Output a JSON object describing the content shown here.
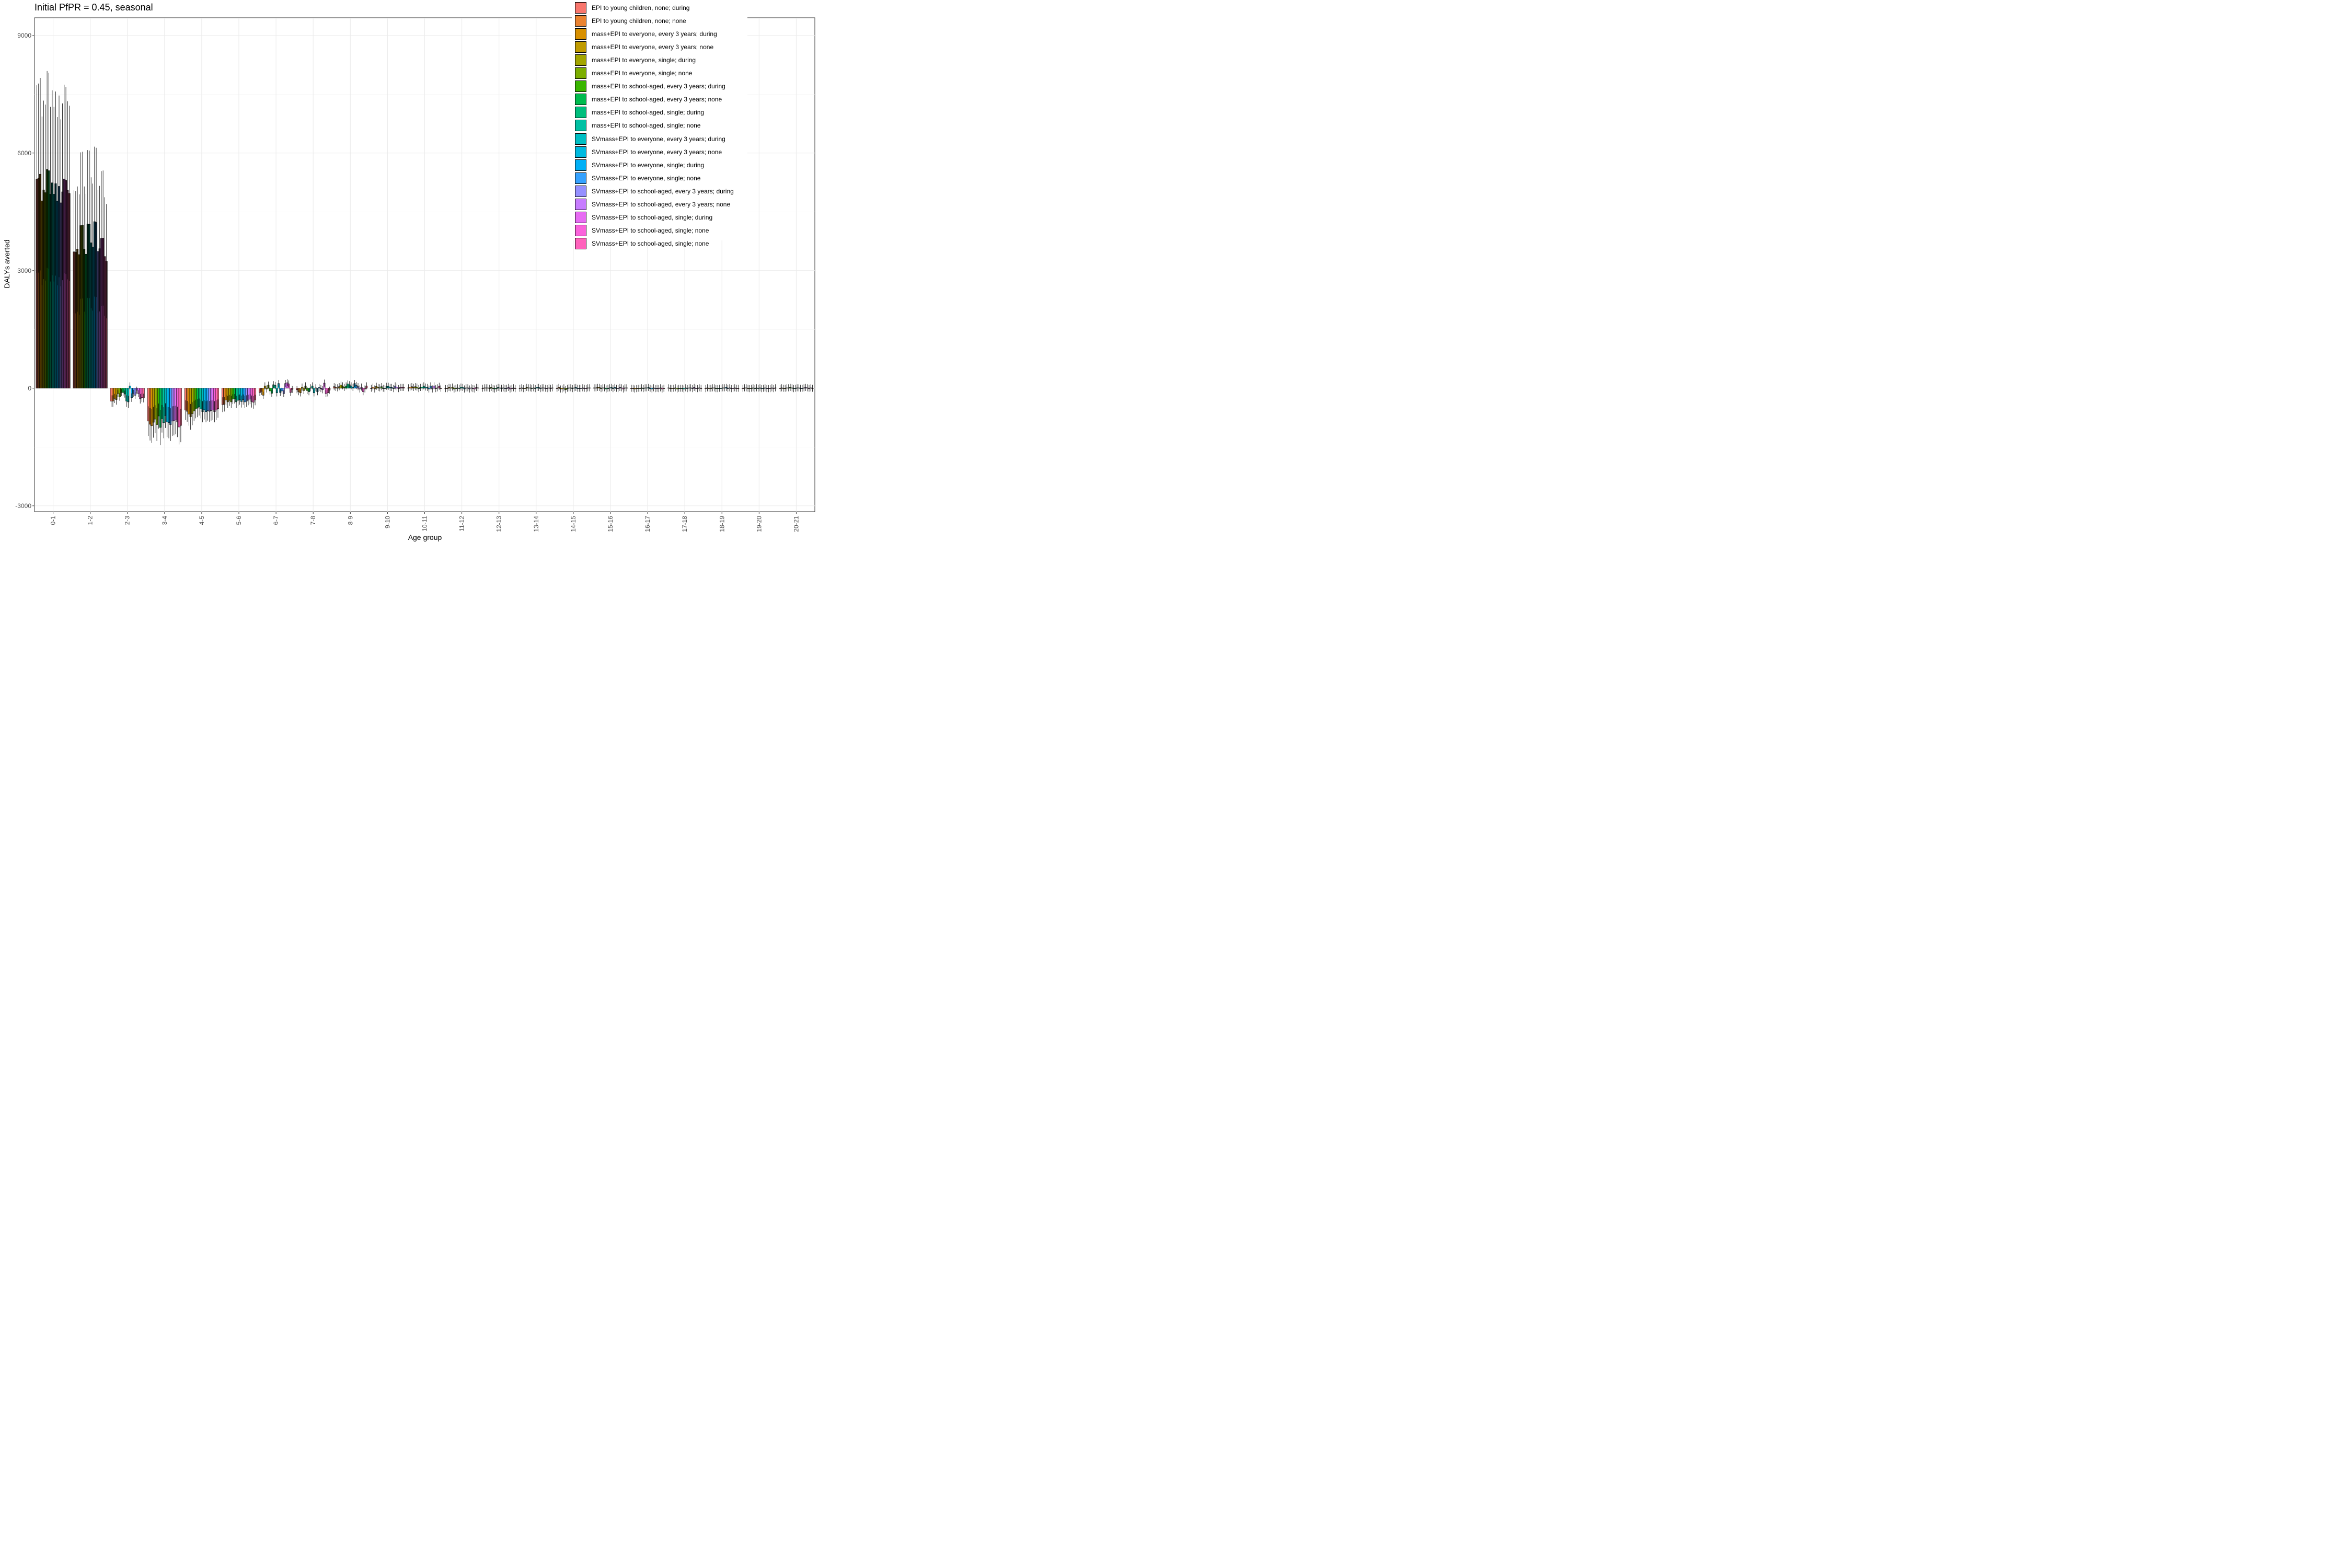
{
  "chart_data": {
    "type": "bar",
    "title": "Initial PfPR = 0.45, seasonal",
    "xlabel": "Age group",
    "ylabel": "DALYs averted",
    "ylim": [
      -3150,
      9450
    ],
    "yticks": [
      -3000,
      0,
      3000,
      6000,
      9000
    ],
    "grid": true,
    "legend_position": "top-right",
    "error_bars": true,
    "categories": [
      "0-1",
      "1-2",
      "2-3",
      "3-4",
      "4-5",
      "5-6",
      "6-7",
      "7-8",
      "8-9",
      "9-10",
      "10-11",
      "11-12",
      "12-13",
      "13-14",
      "14-15",
      "15-16",
      "16-17",
      "17-18",
      "18-19",
      "19-20",
      "20-21"
    ],
    "series": [
      {
        "name": "EPI to young children, none; during",
        "color": "#F8766D",
        "values": [
          5330,
          3480,
          -330,
          -840,
          -560,
          -420,
          -110,
          -40,
          40,
          0,
          10,
          -10,
          0,
          0,
          0,
          10,
          0,
          10,
          -10,
          0,
          0
        ]
      },
      {
        "name": "EPI to young children, none; none",
        "color": "#EA8331",
        "values": [
          5360,
          3470,
          -330,
          -920,
          -590,
          -410,
          -80,
          -90,
          20,
          30,
          30,
          -10,
          10,
          10,
          20,
          10,
          0,
          0,
          10,
          10,
          10
        ]
      },
      {
        "name": "mass+EPI to everyone, every 3 years; during",
        "color": "#D89000",
        "values": [
          5460,
          3550,
          -260,
          -960,
          -660,
          -300,
          -180,
          -120,
          10,
          -20,
          40,
          20,
          10,
          -10,
          -20,
          20,
          -20,
          -10,
          0,
          10,
          0
        ]
      },
      {
        "name": "mass+EPI to everyone, every 3 years; none",
        "color": "#C09B00",
        "values": [
          4780,
          3410,
          -290,
          -870,
          -730,
          -350,
          60,
          30,
          40,
          50,
          20,
          10,
          10,
          -10,
          -20,
          20,
          -10,
          0,
          0,
          0,
          0
        ]
      },
      {
        "name": "mass+EPI to everyone, single; during",
        "color": "#A3A500",
        "values": [
          5060,
          4150,
          -140,
          -790,
          -650,
          -310,
          -20,
          -60,
          80,
          20,
          40,
          30,
          0,
          20,
          10,
          -10,
          0,
          10,
          10,
          -10,
          10
        ]
      },
      {
        "name": "mass+EPI to everyone, single; none",
        "color": "#7CAE00",
        "values": [
          4990,
          4160,
          -220,
          -930,
          -580,
          -350,
          80,
          60,
          60,
          10,
          30,
          -20,
          20,
          10,
          -40,
          10,
          0,
          -20,
          10,
          0,
          10
        ]
      },
      {
        "name": "mass+EPI to school-aged, every 3 years; during",
        "color": "#39B600",
        "values": [
          5580,
          3550,
          -110,
          -710,
          -530,
          -280,
          -70,
          -60,
          20,
          40,
          -10,
          0,
          -10,
          10,
          0,
          10,
          10,
          0,
          -10,
          10,
          20
        ]
      },
      {
        "name": "mass+EPI to school-aged, every 3 years; none",
        "color": "#00BB4E",
        "values": [
          5550,
          3420,
          -110,
          -1000,
          -510,
          -270,
          -130,
          -90,
          60,
          0,
          20,
          10,
          -20,
          0,
          10,
          -20,
          -10,
          0,
          -10,
          -10,
          10
        ]
      },
      {
        "name": "mass+EPI to school-aged, single; during",
        "color": "#00BF7D",
        "values": [
          4950,
          4190,
          -150,
          -780,
          -480,
          -350,
          90,
          10,
          110,
          -10,
          30,
          0,
          0,
          10,
          10,
          0,
          10,
          0,
          0,
          10,
          -10
        ]
      },
      {
        "name": "mass+EPI to school-aged, single; none",
        "color": "#00C1A3",
        "values": [
          5240,
          4180,
          -330,
          -880,
          -530,
          -310,
          70,
          60,
          90,
          50,
          60,
          30,
          20,
          -10,
          -10,
          10,
          10,
          -20,
          0,
          0,
          0
        ]
      },
      {
        "name": "SVmass+EPI to everyone, every 3 years; during",
        "color": "#00BFC4",
        "values": [
          4950,
          3710,
          -350,
          -700,
          -600,
          -290,
          -120,
          -120,
          60,
          50,
          30,
          20,
          10,
          20,
          10,
          20,
          20,
          10,
          10,
          10,
          10
        ]
      },
      {
        "name": "SVmass+EPI to everyone, every 3 years; none",
        "color": "#00BAE0",
        "values": [
          5220,
          3600,
          60,
          -860,
          -550,
          -340,
          120,
          10,
          20,
          20,
          20,
          -20,
          0,
          20,
          20,
          -10,
          0,
          -10,
          10,
          -10,
          10
        ]
      },
      {
        "name": "SVmass+EPI to everyone, single; during",
        "color": "#00B0F6",
        "values": [
          4770,
          4250,
          -240,
          -880,
          -600,
          -290,
          -110,
          -90,
          120,
          20,
          -20,
          10,
          10,
          -10,
          0,
          20,
          -20,
          10,
          20,
          0,
          0
        ]
      },
      {
        "name": "SVmass+EPI to everyone, single; none",
        "color": "#35A2FF",
        "values": [
          5150,
          4230,
          -130,
          -930,
          -570,
          -350,
          -70,
          20,
          70,
          -10,
          60,
          10,
          -10,
          10,
          0,
          0,
          10,
          10,
          0,
          10,
          0
        ]
      },
      {
        "name": "SVmass+EPI to school-aged, every 3 years; during",
        "color": "#9590FF",
        "values": [
          4730,
          3490,
          -180,
          -840,
          -590,
          -330,
          -140,
          -10,
          40,
          60,
          -20,
          -20,
          0,
          10,
          -10,
          -10,
          -10,
          -10,
          10,
          -10,
          10
        ]
      },
      {
        "name": "SVmass+EPI to school-aged, every 3 years; none",
        "color": "#C77CFF",
        "values": [
          5010,
          3560,
          -50,
          -830,
          -570,
          -300,
          120,
          -40,
          -20,
          30,
          60,
          10,
          20,
          0,
          10,
          20,
          0,
          20,
          -10,
          -10,
          20
        ]
      },
      {
        "name": "SVmass+EPI to school-aged, single; during",
        "color": "#E76BF3",
        "values": [
          5340,
          3820,
          -140,
          -810,
          -560,
          -280,
          140,
          130,
          30,
          -10,
          -10,
          -10,
          -20,
          -10,
          0,
          10,
          -10,
          0,
          0,
          -10,
          10
        ]
      },
      {
        "name": "SVmass+EPI to school-aged, single; none",
        "color": "#FA62DB",
        "values": [
          5300,
          3830,
          -270,
          -860,
          -600,
          -340,
          110,
          -140,
          -90,
          20,
          10,
          -20,
          0,
          10,
          -10,
          -20,
          10,
          -10,
          10,
          10,
          0
        ]
      },
      {
        "name": "SVmass+EPI to school-aged, single; none",
        "color": "#FF62BC",
        "values": [
          5050,
          3360,
          -240,
          -990,
          -560,
          -360,
          -110,
          -120,
          -20,
          20,
          50,
          20,
          10,
          0,
          10,
          10,
          -20,
          10,
          0,
          -10,
          10
        ]
      },
      {
        "name": "",
        "color": "#FF6C91",
        "values": [
          4970,
          3240,
          -250,
          -950,
          -520,
          -300,
          -30,
          -50,
          60,
          20,
          0,
          10,
          -10,
          10,
          10,
          10,
          0,
          0,
          0,
          10,
          0
        ]
      }
    ]
  }
}
